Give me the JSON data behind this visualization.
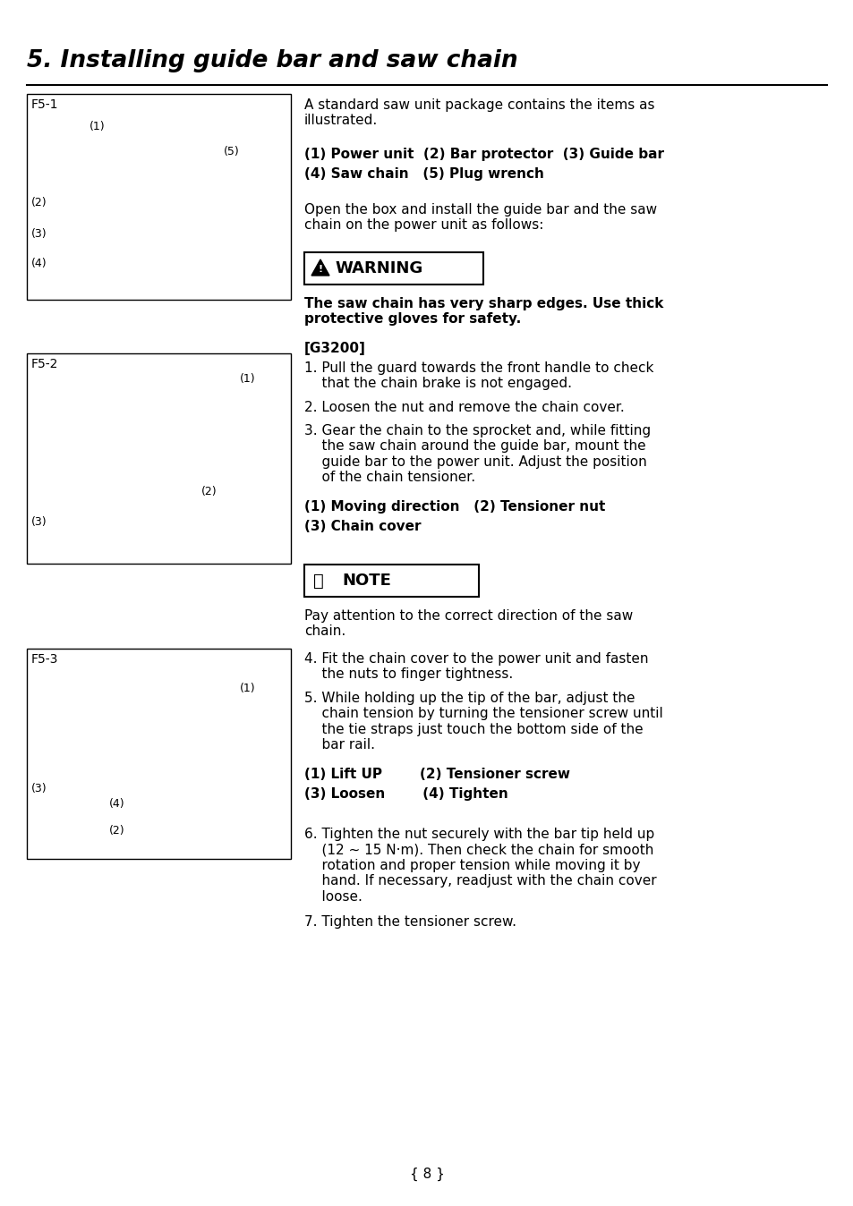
{
  "title": "5. Installing guide bar and saw chain",
  "page_num": "{ 8 }",
  "bg_color": "#ffffff",
  "text_color": "#000000",
  "fig1_label": "F5-1",
  "fig2_label": "F5-2",
  "fig3_label": "F5-3",
  "section1_text": "A standard saw unit package contains the items as\nillustrated.",
  "bold_line1": "(1) Power unit  (2) Bar protector  (3) Guide bar",
  "bold_line2": "(4) Saw chain   (5) Plug wrench",
  "open_box_text": "Open the box and install the guide bar and the saw\nchain on the power unit as follows:",
  "warning_text": "WARNING",
  "warning_body": "The saw chain has very sharp edges. Use thick\nprotective gloves for safety.",
  "g3200_label": "[G3200]",
  "steps_1_3": [
    "1. Pull the guard towards the front handle to check\n    that the chain brake is not engaged.",
    "2. Loosen the nut and remove the chain cover.",
    "3. Gear the chain to the sprocket and, while fitting\n    the saw chain around the guide bar, mount the\n    guide bar to the power unit. Adjust the position\n    of the chain tensioner."
  ],
  "fig2_caption1": "(1) Moving direction   (2) Tensioner nut",
  "fig2_caption2": "(3) Chain cover",
  "note_text": "NOTE",
  "note_body": "Pay attention to the correct direction of the saw\nchain.",
  "steps_4_5": [
    "4. Fit the chain cover to the power unit and fasten\n    the nuts to finger tightness.",
    "5. While holding up the tip of the bar, adjust the\n    chain tension by turning the tensioner screw until\n    the tie straps just touch the bottom side of the\n    bar rail."
  ],
  "fig3_caption1": "(1) Lift UP        (2) Tensioner screw",
  "fig3_caption2": "(3) Loosen        (4) Tighten",
  "steps_6_7": [
    "6. Tighten the nut securely with the bar tip held up\n    (12 ~ 15 N·m). Then check the chain for smooth\n    rotation and proper tension while moving it by\n    hand. If necessary, readjust with the chain cover\n    loose.",
    "7. Tighten the tensioner screw."
  ]
}
